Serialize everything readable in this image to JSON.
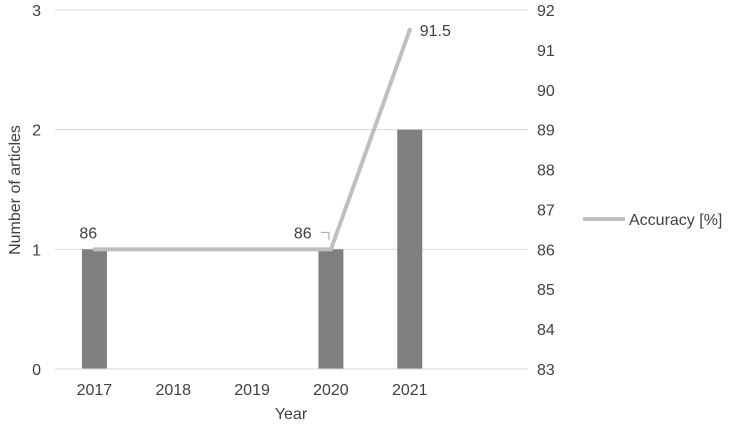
{
  "chart_data": {
    "type": "bar+line",
    "categories": [
      "2017",
      "2018",
      "2019",
      "2020",
      "2021"
    ],
    "series": [
      {
        "type": "bar",
        "axis": "left",
        "values": [
          1,
          0,
          0,
          1,
          2
        ],
        "color": "#7f7f7f"
      },
      {
        "type": "line",
        "axis": "right",
        "name": "Accuracy [%]",
        "points": [
          {
            "category": "2017",
            "value": 86,
            "label": "86"
          },
          {
            "category": "2020",
            "value": 86,
            "label": "86"
          },
          {
            "category": "2021",
            "value": 91.5,
            "label": "91.5"
          }
        ],
        "color": "#bfbfbf"
      }
    ],
    "xlabel": "Year",
    "ylabel_left": "Number of articles",
    "ylabel_right": "",
    "ylim_left": [
      0,
      3
    ],
    "yticks_left": [
      "0",
      "1",
      "2",
      "3"
    ],
    "ylim_right": [
      83,
      92
    ],
    "yticks_right": [
      "83",
      "84",
      "85",
      "86",
      "87",
      "88",
      "89",
      "90",
      "91",
      "92"
    ],
    "grid": true,
    "legend_position": "right",
    "legend_entries": [
      "Accuracy [%]"
    ],
    "gridline_color": "#d9d9d9"
  }
}
